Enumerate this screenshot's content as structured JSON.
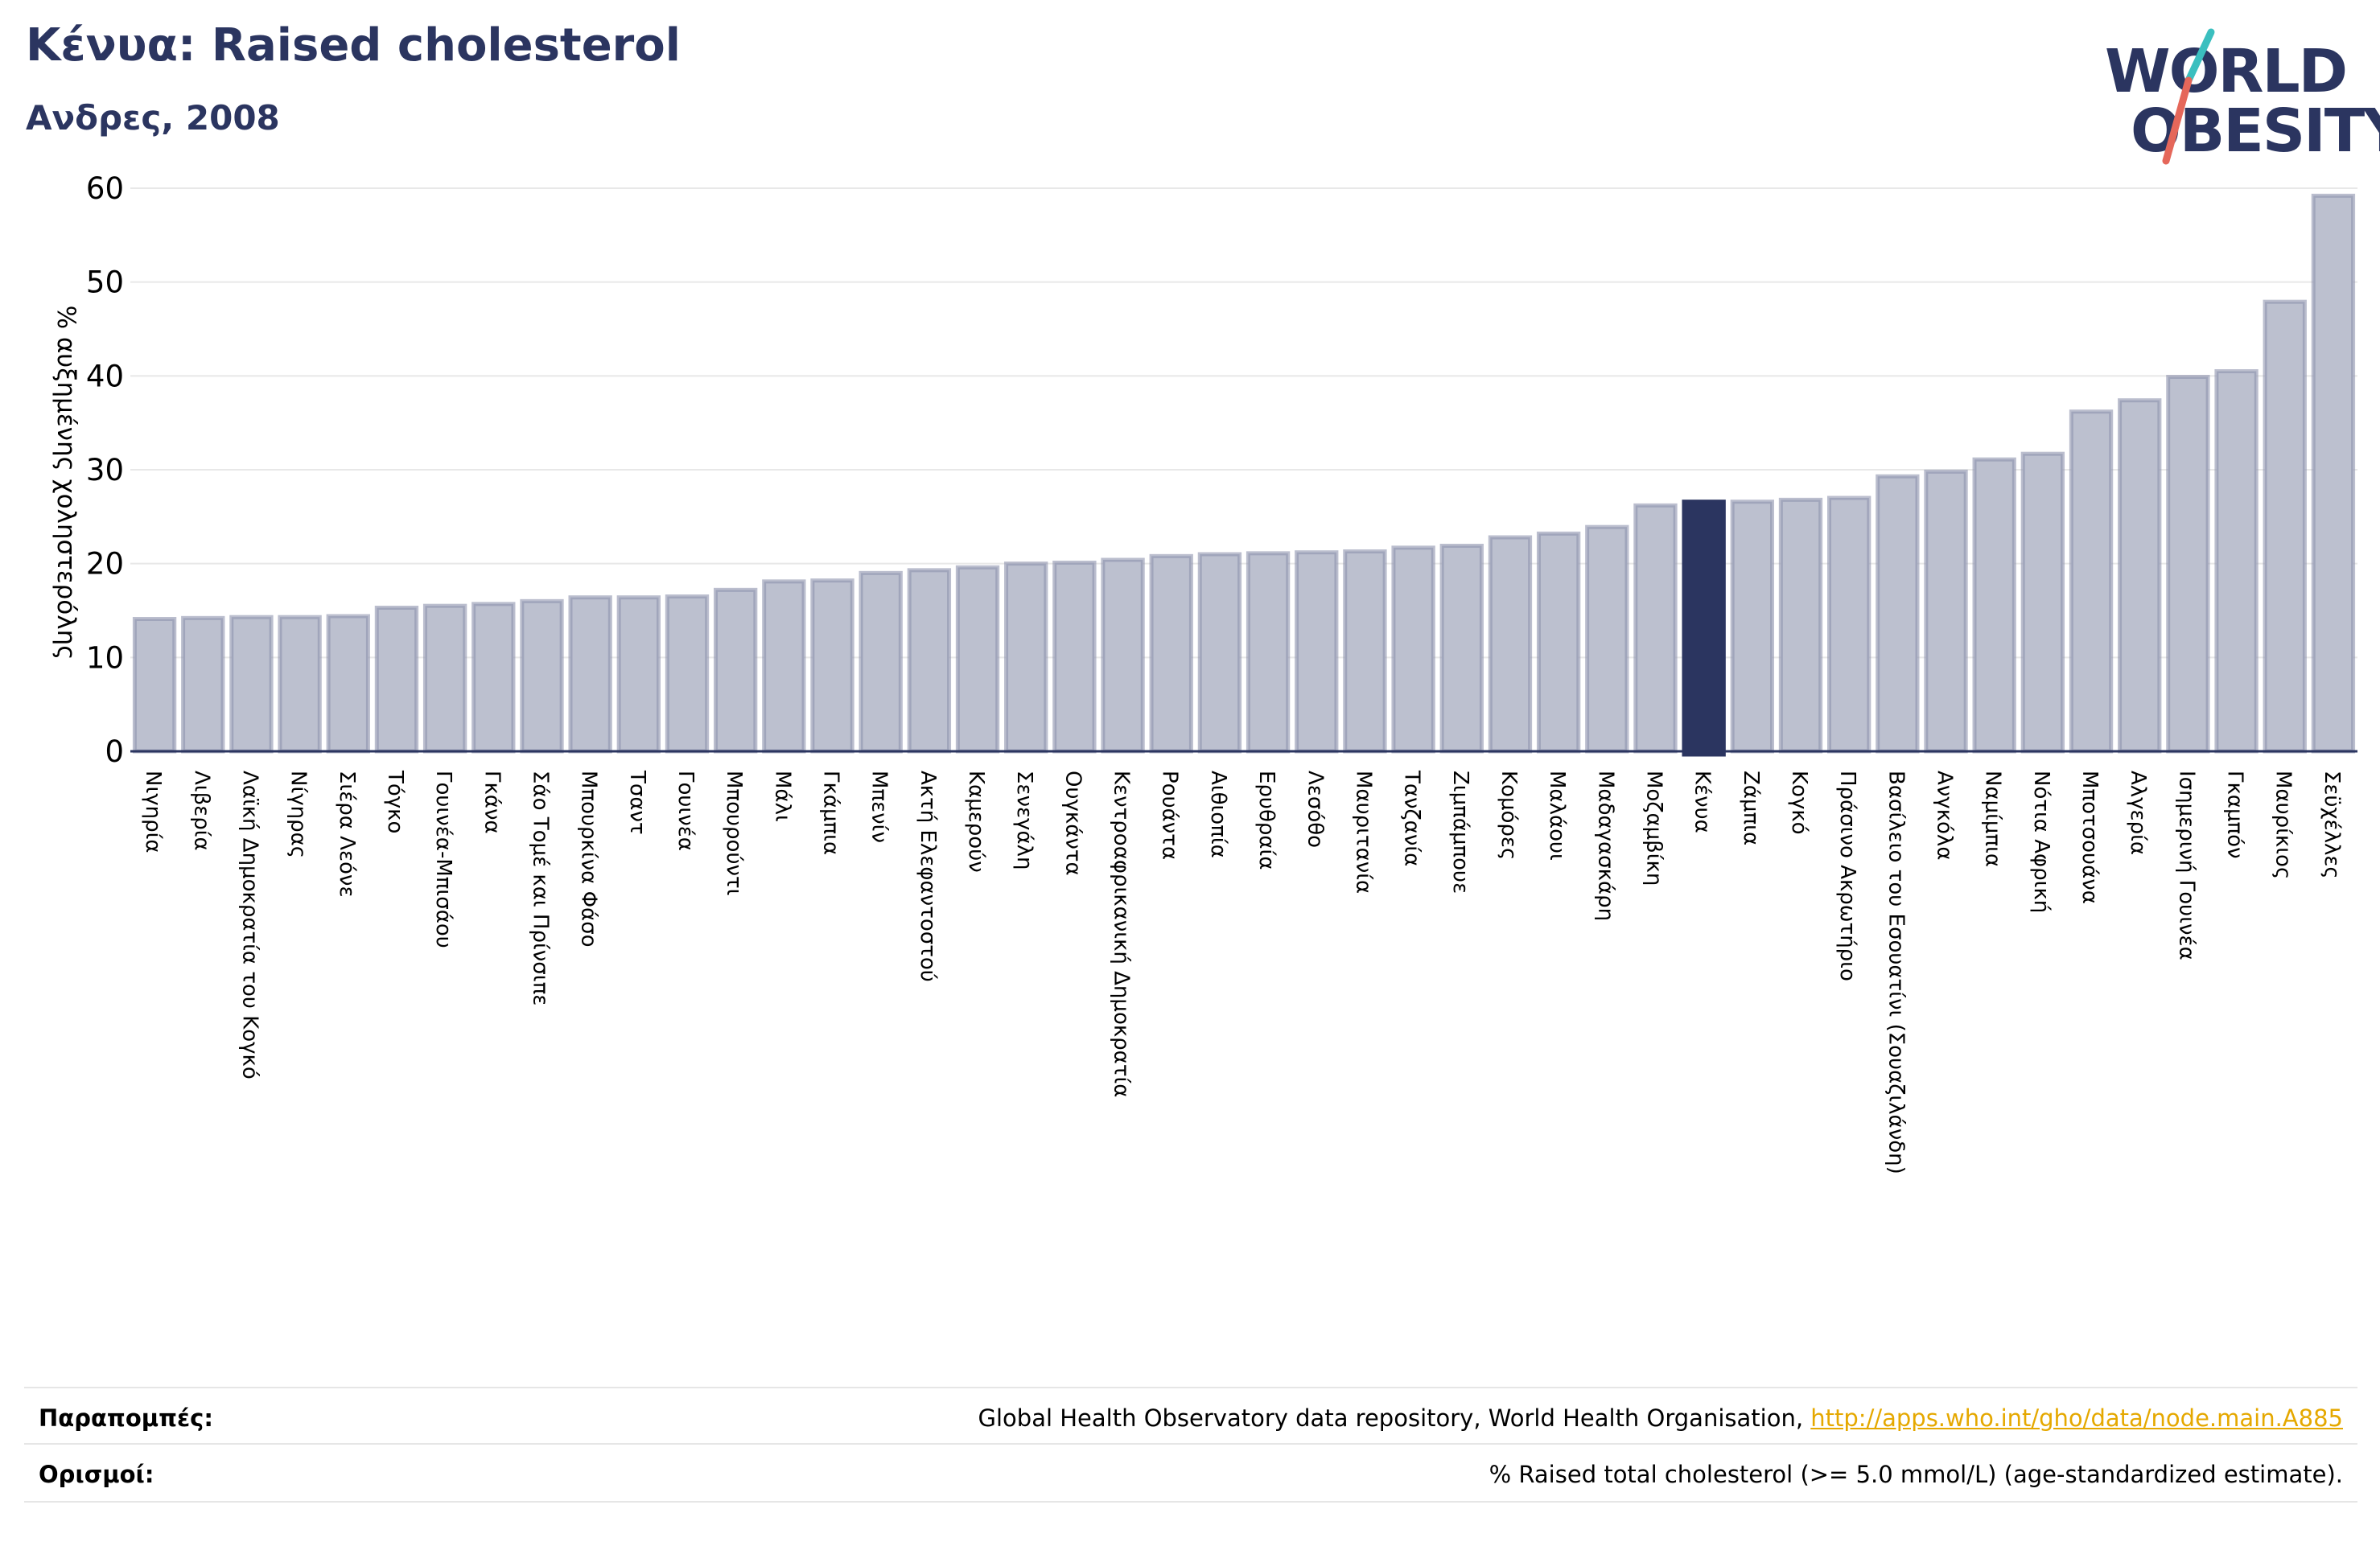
{
  "header": {
    "title": "Κένυα: Raised cholesterol",
    "subtitle": "Ανδρες, 2008"
  },
  "logo": {
    "line1": "WORLD",
    "line2": "OBESITY"
  },
  "colors": {
    "bar": "#bcc0cf",
    "bar_border": "#8d92ad",
    "highlight": "#2b3560",
    "text": "#2b3560",
    "link": "#e5a800",
    "logo_teal": "#3bbfbf",
    "logo_coral": "#e5675a"
  },
  "chart_data": {
    "type": "bar",
    "ylabel": "% αυξημένης χοληστερόλης",
    "ylim": [
      0,
      60
    ],
    "yticks": [
      0,
      10,
      20,
      30,
      40,
      50,
      60
    ],
    "grid": true,
    "highlight": "Κένυα",
    "categories": [
      "Νιγηρία",
      "Λιβερία",
      "Λαϊκή Δημοκρατία του Κογκό",
      "Νίγηρας",
      "Σιέρα Λεόνε",
      "Τόγκο",
      "Γουινέα-Μπισάου",
      "Γκάνα",
      "Σάο Τομέ και Πρίνσιπε",
      "Μπουρκίνα Φάσο",
      "Τσαντ",
      "Γουινέα",
      "Μπουρούντι",
      "Μάλι",
      "Γκάμπια",
      "Μπενίν",
      "Ακτή Ελεφαντοστού",
      "Καμερούν",
      "Σενεγάλη",
      "Ουγκάντα",
      "Κεντροαφρικανική Δημοκρατία",
      "Ρουάντα",
      "Αιθιοπία",
      "Ερυθραία",
      "Λεσόθο",
      "Μαυριτανία",
      "Τανζανία",
      "Ζιμπάμπουε",
      "Κομόρες",
      "Μαλάουι",
      "Μαδαγασκάρη",
      "Μοζαμβίκη",
      "Κένυα",
      "Ζάμπια",
      "Κογκό",
      "Πράσινο Ακρωτήριο",
      "Βασίλειο του Εσουατίνι (Σουαζιλάνδη)",
      "Ανγκόλα",
      "Ναμίμπια",
      "Νότια Αφρική",
      "Μποτσουάνα",
      "Αλγερία",
      "Ισημερινή Γουινέα",
      "Γκαμπόν",
      "Μαυρίκιος",
      "Σεϋχέλλες"
    ],
    "values": [
      14.1,
      14.2,
      14.3,
      14.3,
      14.4,
      15.3,
      15.5,
      15.7,
      16.0,
      16.4,
      16.4,
      16.5,
      17.2,
      18.1,
      18.2,
      19.0,
      19.3,
      19.6,
      20.0,
      20.1,
      20.4,
      20.8,
      21.0,
      21.1,
      21.2,
      21.3,
      21.7,
      21.9,
      22.8,
      23.2,
      23.9,
      26.2,
      26.6,
      26.6,
      26.8,
      27.0,
      29.3,
      29.8,
      31.1,
      31.7,
      36.2,
      37.4,
      39.9,
      40.5,
      47.9,
      59.2
    ]
  },
  "footer": {
    "references_label": "Παραπομπές:",
    "references_text": "Global Health Observatory data repository, World Health Organisation, ",
    "references_link": "http://apps.who.int/gho/data/node.main.A885",
    "definitions_label": "Ορισμοί:",
    "definitions_text": "% Raised total cholesterol (>= 5.0 mmol/L) (age-standardized estimate)."
  }
}
